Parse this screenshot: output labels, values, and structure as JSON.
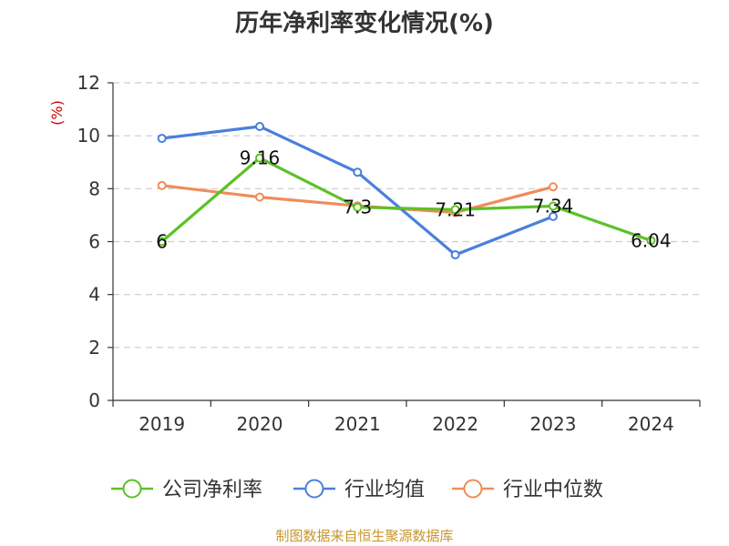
{
  "title": "历年净利率变化情况(%)",
  "source_text": "制图数据来自恒生聚源数据库",
  "colors": {
    "source": "#c8962d",
    "unit": "#cc0000",
    "axis": "#333333",
    "grid": "#cccccc"
  },
  "chart_data": {
    "type": "line",
    "title": "历年净利率变化情况(%)",
    "xlabel": "",
    "ylabel": "(%)",
    "categories": [
      "2019",
      "2020",
      "2021",
      "2022",
      "2023",
      "2024"
    ],
    "ylim": [
      0,
      12
    ],
    "yticks": [
      0,
      2,
      4,
      6,
      8,
      10,
      12
    ],
    "grid": true,
    "legend_position": "bottom",
    "series": [
      {
        "name": "公司净利率",
        "color": "#5cc127",
        "values": [
          6,
          9.16,
          7.3,
          7.21,
          7.34,
          6.04
        ],
        "labels": [
          "6",
          "9.16",
          "7.3",
          "7.21",
          "7.34",
          "6.04"
        ]
      },
      {
        "name": "行业均值",
        "color": "#4a7fdc",
        "values": [
          9.9,
          10.35,
          8.62,
          5.5,
          6.95,
          null
        ]
      },
      {
        "name": "行业中位数",
        "color": "#f08c5a",
        "values": [
          8.12,
          7.68,
          7.35,
          7.1,
          8.07,
          null
        ]
      }
    ]
  }
}
